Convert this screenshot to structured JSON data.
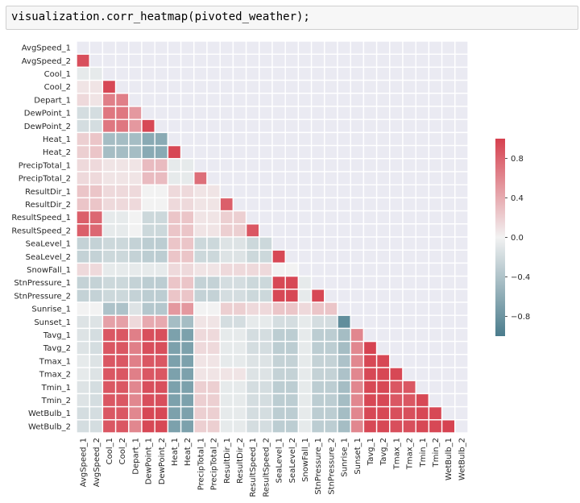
{
  "cell": {
    "code": "visualization.corr_heatmap(pivoted_weather);"
  },
  "chart_data": {
    "type": "heatmap",
    "variables": [
      "AvgSpeed_1",
      "AvgSpeed_2",
      "Cool_1",
      "Cool_2",
      "Depart_1",
      "DewPoint_1",
      "DewPoint_2",
      "Heat_1",
      "Heat_2",
      "PrecipTotal_1",
      "PrecipTotal_2",
      "ResultDir_1",
      "ResultDir_2",
      "ResultSpeed_1",
      "ResultSpeed_2",
      "SeaLevel_1",
      "SeaLevel_2",
      "SnowFall_1",
      "StnPressure_1",
      "StnPressure_2",
      "Sunrise_1",
      "Sunset_1",
      "Tavg_1",
      "Tavg_2",
      "Tmax_1",
      "Tmax_2",
      "Tmin_1",
      "Tmin_2",
      "WetBulb_1",
      "WetBulb_2"
    ],
    "mask": "upper-triangle-and-diagonal",
    "colormap": {
      "low": "#5b8a98",
      "mid": "#f2f2f2",
      "high": "#d6404e"
    },
    "vmin": -1.0,
    "vmax": 1.0,
    "colorbar_ticks": [
      "0.8",
      "0.4",
      "0.0",
      "−0.4",
      "−0.8"
    ],
    "colorbar_tick_values": [
      0.8,
      0.4,
      0.0,
      -0.4,
      -0.8
    ],
    "lower_triangle_rows": [
      [],
      [
        0.9
      ],
      [
        -0.05,
        -0.05
      ],
      [
        0.05,
        0.05,
        0.95
      ],
      [
        0.1,
        0.05,
        0.6,
        0.6
      ],
      [
        -0.15,
        -0.15,
        0.65,
        0.65,
        0.45
      ],
      [
        -0.15,
        -0.15,
        0.65,
        0.65,
        0.45,
        0.95
      ],
      [
        0.15,
        0.2,
        -0.45,
        -0.45,
        -0.45,
        -0.65,
        -0.65
      ],
      [
        0.15,
        0.2,
        -0.45,
        -0.45,
        -0.45,
        -0.65,
        -0.65,
        0.95
      ],
      [
        0.1,
        0.1,
        0.05,
        0.05,
        0.05,
        0.25,
        0.25,
        -0.05,
        -0.05
      ],
      [
        0.1,
        0.1,
        0.05,
        0.05,
        0.05,
        0.25,
        0.25,
        -0.05,
        -0.05,
        0.7
      ],
      [
        0.2,
        0.2,
        0.1,
        0.1,
        0.1,
        0.0,
        0.0,
        0.1,
        0.1,
        0.05,
        0.05
      ],
      [
        0.2,
        0.2,
        0.1,
        0.1,
        0.1,
        0.0,
        0.0,
        0.1,
        0.1,
        0.05,
        0.05,
        0.8
      ],
      [
        0.8,
        0.75,
        -0.05,
        -0.05,
        0.0,
        -0.2,
        -0.2,
        0.2,
        0.2,
        0.05,
        0.05,
        0.15,
        0.15
      ],
      [
        0.8,
        0.75,
        -0.05,
        -0.05,
        0.0,
        -0.2,
        -0.2,
        0.2,
        0.2,
        0.05,
        0.05,
        0.15,
        0.15,
        0.85
      ],
      [
        -0.25,
        -0.25,
        -0.2,
        -0.2,
        -0.25,
        -0.3,
        -0.3,
        0.2,
        0.2,
        -0.2,
        -0.2,
        -0.1,
        -0.1,
        -0.2,
        -0.2
      ],
      [
        -0.25,
        -0.25,
        -0.2,
        -0.2,
        -0.25,
        -0.3,
        -0.3,
        0.2,
        0.2,
        -0.2,
        -0.2,
        -0.1,
        -0.1,
        -0.2,
        -0.2,
        0.95
      ],
      [
        0.1,
        0.1,
        -0.05,
        -0.05,
        -0.05,
        -0.05,
        -0.05,
        0.1,
        0.1,
        0.05,
        0.05,
        0.1,
        0.1,
        0.1,
        0.1,
        0.0,
        0.0
      ],
      [
        -0.25,
        -0.25,
        -0.2,
        -0.2,
        -0.25,
        -0.3,
        -0.3,
        0.2,
        0.2,
        -0.25,
        -0.25,
        -0.15,
        -0.15,
        -0.2,
        -0.2,
        0.95,
        0.95,
        -0.05
      ],
      [
        -0.25,
        -0.25,
        -0.2,
        -0.2,
        -0.25,
        -0.3,
        -0.3,
        0.2,
        0.2,
        -0.25,
        -0.25,
        -0.15,
        -0.15,
        -0.2,
        -0.2,
        0.95,
        0.95,
        -0.05,
        0.95
      ],
      [
        0.0,
        0.0,
        -0.4,
        -0.4,
        -0.1,
        -0.35,
        -0.35,
        0.45,
        0.45,
        0.0,
        0.0,
        0.15,
        0.15,
        0.1,
        0.1,
        0.2,
        0.2,
        0.1,
        0.2,
        0.2
      ],
      [
        -0.1,
        -0.1,
        0.4,
        0.4,
        0.1,
        0.35,
        0.35,
        -0.45,
        -0.45,
        0.05,
        0.05,
        -0.15,
        -0.15,
        -0.05,
        -0.05,
        -0.15,
        -0.15,
        -0.05,
        -0.15,
        -0.15,
        -0.95
      ],
      [
        -0.1,
        -0.15,
        0.85,
        0.85,
        0.6,
        0.9,
        0.9,
        -0.75,
        -0.75,
        0.1,
        0.1,
        -0.05,
        -0.05,
        -0.15,
        -0.15,
        -0.3,
        -0.3,
        -0.05,
        -0.3,
        -0.3,
        -0.45,
        0.55
      ],
      [
        -0.1,
        -0.15,
        0.85,
        0.85,
        0.6,
        0.9,
        0.9,
        -0.75,
        -0.75,
        0.1,
        0.1,
        -0.05,
        -0.05,
        -0.15,
        -0.15,
        -0.3,
        -0.3,
        -0.05,
        -0.3,
        -0.3,
        -0.45,
        0.55,
        0.98
      ],
      [
        -0.05,
        -0.1,
        0.85,
        0.85,
        0.6,
        0.85,
        0.85,
        -0.75,
        -0.75,
        0.05,
        0.05,
        -0.05,
        -0.05,
        -0.1,
        -0.1,
        -0.25,
        -0.25,
        -0.05,
        -0.25,
        -0.25,
        -0.4,
        0.55,
        0.95,
        0.95
      ],
      [
        -0.05,
        -0.1,
        0.85,
        0.85,
        0.6,
        0.85,
        0.85,
        -0.75,
        -0.75,
        0.05,
        0.05,
        0.05,
        0.05,
        -0.1,
        -0.1,
        -0.25,
        -0.25,
        -0.05,
        -0.25,
        -0.25,
        -0.4,
        0.55,
        0.95,
        0.95,
        0.95
      ],
      [
        -0.1,
        -0.15,
        0.85,
        0.85,
        0.55,
        0.9,
        0.9,
        -0.75,
        -0.75,
        0.15,
        0.15,
        -0.05,
        -0.05,
        -0.15,
        -0.15,
        -0.3,
        -0.3,
        -0.05,
        -0.3,
        -0.3,
        -0.45,
        0.55,
        0.95,
        0.95,
        0.85,
        0.85
      ],
      [
        -0.1,
        -0.15,
        0.85,
        0.85,
        0.55,
        0.9,
        0.9,
        -0.75,
        -0.75,
        0.15,
        0.15,
        -0.05,
        -0.05,
        -0.15,
        -0.15,
        -0.3,
        -0.3,
        -0.05,
        -0.3,
        -0.3,
        -0.45,
        0.55,
        0.95,
        0.95,
        0.85,
        0.85,
        0.95
      ],
      [
        -0.15,
        -0.15,
        0.85,
        0.85,
        0.55,
        0.95,
        0.95,
        -0.75,
        -0.75,
        0.15,
        0.15,
        -0.05,
        -0.05,
        -0.15,
        -0.15,
        -0.3,
        -0.3,
        -0.05,
        -0.3,
        -0.3,
        -0.45,
        0.55,
        0.95,
        0.95,
        0.9,
        0.9,
        0.95,
        0.95
      ],
      [
        -0.15,
        -0.15,
        0.85,
        0.85,
        0.55,
        0.95,
        0.95,
        -0.75,
        -0.75,
        0.15,
        0.15,
        -0.05,
        -0.05,
        -0.15,
        -0.15,
        -0.3,
        -0.3,
        -0.05,
        -0.3,
        -0.3,
        -0.45,
        0.55,
        0.95,
        0.95,
        0.9,
        0.9,
        0.95,
        0.95,
        0.98
      ]
    ]
  }
}
